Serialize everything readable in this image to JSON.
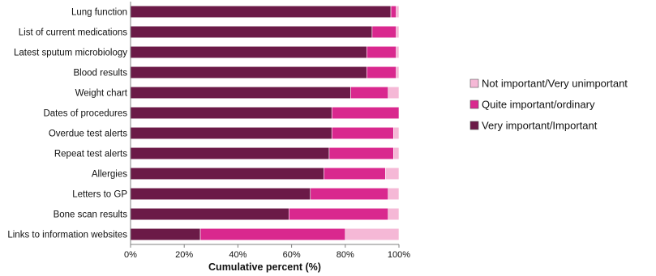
{
  "chart_data": {
    "type": "bar",
    "orientation": "horizontal",
    "stacked": true,
    "xlabel": "Cumulative percent (%)",
    "xlim": [
      0,
      100
    ],
    "xticks": [
      "0%",
      "20%",
      "40%",
      "60%",
      "80%",
      "100%"
    ],
    "grid": false,
    "legend_position": "right",
    "categories": [
      "Lung function",
      "List of current medications",
      "Latest sputum microbiology",
      "Blood results",
      "Weight chart",
      "Dates of procedures",
      "Overdue test alerts",
      "Repeat test alerts",
      "Allergies",
      "Letters to GP",
      "Bone scan results",
      "Links to information websites"
    ],
    "series": [
      {
        "name": "Very important/Important",
        "color": "#6b1a47",
        "values": [
          97,
          90,
          88,
          88,
          82,
          75,
          75,
          74,
          72,
          67,
          59,
          26
        ]
      },
      {
        "name": "Quite important/ordinary",
        "color": "#d9288e",
        "values": [
          2,
          9,
          11,
          11,
          14,
          25,
          23,
          24,
          23,
          29,
          37,
          54
        ]
      },
      {
        "name": "Not important/Very unimportant",
        "color": "#f5b8d6",
        "values": [
          1,
          1,
          1,
          1,
          4,
          0,
          2,
          2,
          5,
          4,
          4,
          20
        ]
      }
    ],
    "legend_order": [
      "Not important/Very unimportant",
      "Quite important/ordinary",
      "Very important/Important"
    ]
  }
}
